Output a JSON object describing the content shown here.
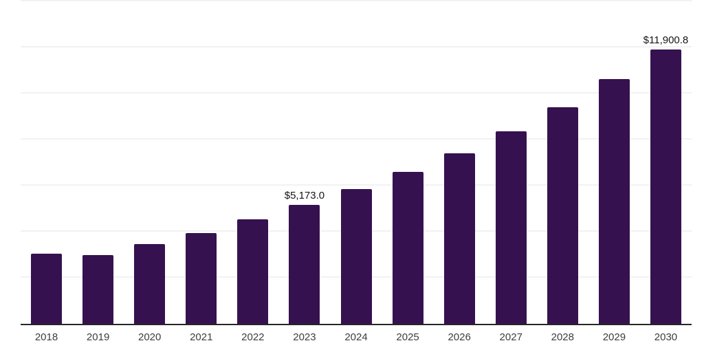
{
  "chart_data": {
    "type": "bar",
    "title": "",
    "xlabel": "",
    "ylabel": "",
    "categories": [
      "2018",
      "2019",
      "2020",
      "2021",
      "2022",
      "2023",
      "2024",
      "2025",
      "2026",
      "2027",
      "2028",
      "2029",
      "2030"
    ],
    "values": [
      3050,
      3000,
      3450,
      3950,
      4550,
      5173.0,
      5850,
      6590,
      7400,
      8350,
      9400,
      10620,
      11900.8
    ],
    "values_note": "Only 2023 and 2030 are labeled on the chart; other values estimated from gridlines (grid step 2000, axis max 14000).",
    "data_labels": {
      "2023": "$5,173.0",
      "2030": "$11,900.8"
    },
    "ylim": [
      0,
      14000
    ],
    "gridline_step": 2000,
    "grid": true,
    "legend": false,
    "colors": {
      "bar": "#36114F",
      "gridline": "#F2F2F2",
      "axis_line": "#262626",
      "data_label_text": "#141414",
      "tick_label_text": "#3D3D3D",
      "background": "#FFFFFF"
    }
  }
}
